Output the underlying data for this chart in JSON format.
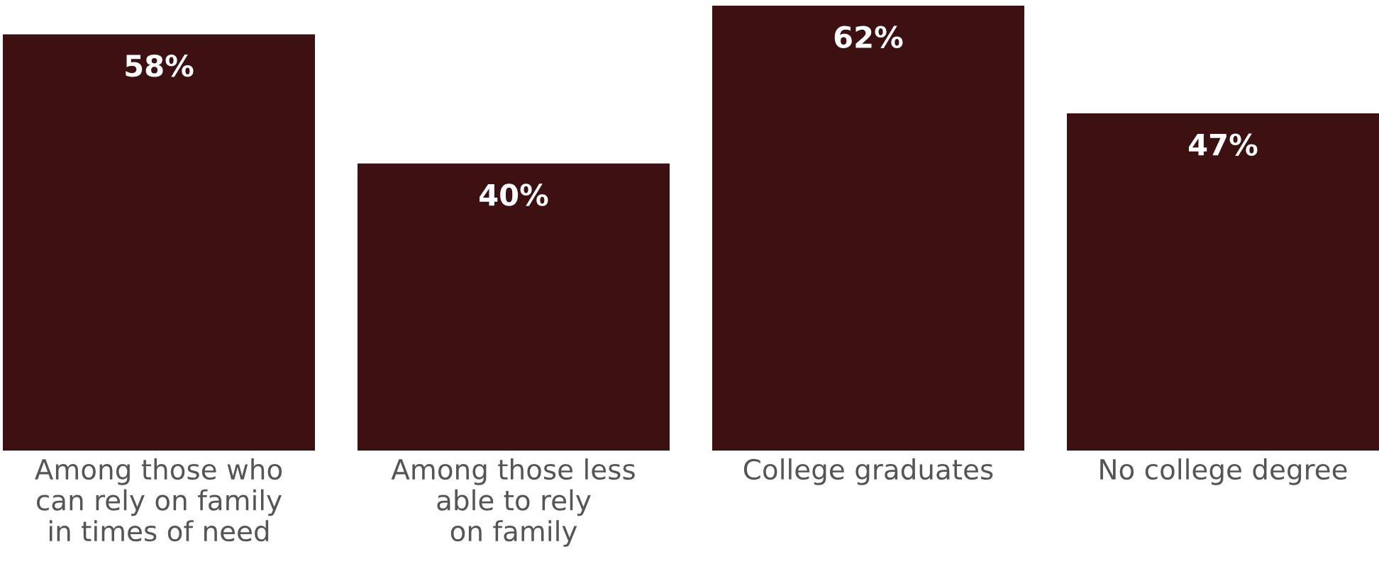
{
  "chart_data": {
    "type": "bar",
    "categories": [
      "Among those who\ncan rely on family\nin times of need",
      "Among those less\nable to rely\non family",
      "College graduates",
      "No college degree"
    ],
    "values": [
      58,
      40,
      62,
      47
    ],
    "value_labels": [
      "58%",
      "40%",
      "62%",
      "47%"
    ],
    "color": "#3d1012"
  }
}
